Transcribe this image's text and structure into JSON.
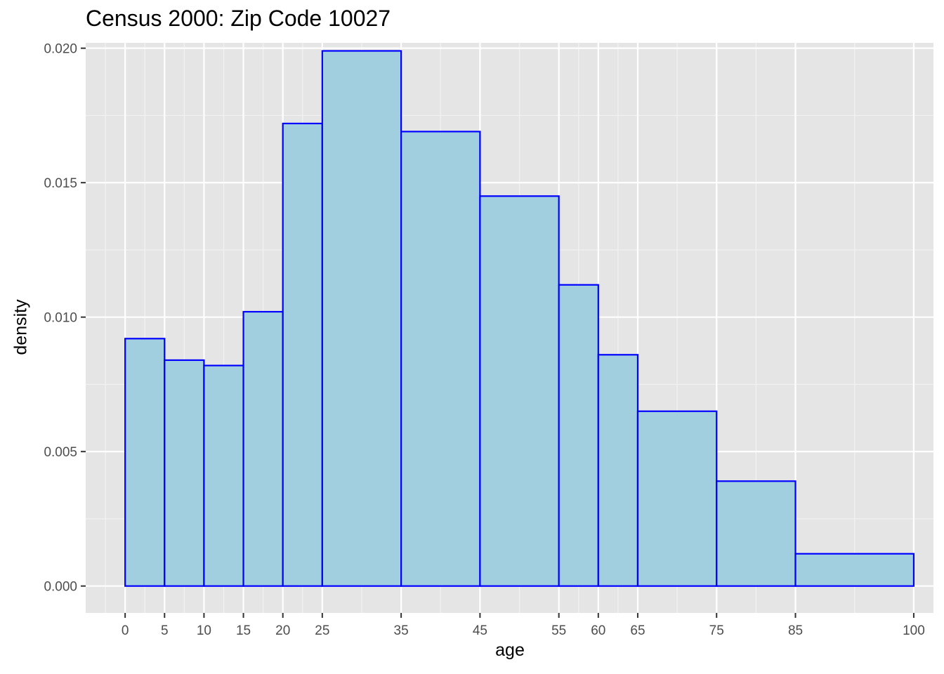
{
  "chart_data": {
    "type": "histogram",
    "title": "Census 2000: Zip Code 10027",
    "xlabel": "age",
    "ylabel": "density",
    "xlim": [
      -5,
      102.5
    ],
    "ylim": [
      -0.001,
      0.0202
    ],
    "x_ticks": [
      0,
      5,
      10,
      15,
      20,
      25,
      35,
      45,
      55,
      60,
      65,
      75,
      85,
      100
    ],
    "x_tick_labels": [
      "0",
      "5",
      "10",
      "15",
      "20",
      "25",
      "35",
      "45",
      "55",
      "60",
      "65",
      "75",
      "85",
      "100"
    ],
    "y_ticks": [
      0.0,
      0.005,
      0.01,
      0.015,
      0.02
    ],
    "y_tick_labels": [
      "0.000",
      "0.005",
      "0.010",
      "0.015",
      "0.020"
    ],
    "bins": [
      {
        "start": 0,
        "end": 5,
        "density": 0.0092
      },
      {
        "start": 5,
        "end": 10,
        "density": 0.0084
      },
      {
        "start": 10,
        "end": 15,
        "density": 0.0082
      },
      {
        "start": 15,
        "end": 20,
        "density": 0.0102
      },
      {
        "start": 20,
        "end": 25,
        "density": 0.0172
      },
      {
        "start": 25,
        "end": 35,
        "density": 0.0199
      },
      {
        "start": 35,
        "end": 45,
        "density": 0.0169
      },
      {
        "start": 45,
        "end": 55,
        "density": 0.0145
      },
      {
        "start": 55,
        "end": 60,
        "density": 0.0112
      },
      {
        "start": 60,
        "end": 65,
        "density": 0.0086
      },
      {
        "start": 65,
        "end": 75,
        "density": 0.0065
      },
      {
        "start": 75,
        "end": 85,
        "density": 0.0039
      },
      {
        "start": 85,
        "end": 100,
        "density": 0.0012
      }
    ],
    "grid": true,
    "colors": {
      "panel_background": "#E5E5E5",
      "grid_major": "#FFFFFF",
      "grid_minor": "#F2F2F2",
      "bar_fill": "#A2CFE0",
      "bar_outline": "#0000FF",
      "tick_text": "#4D4D4D"
    }
  }
}
